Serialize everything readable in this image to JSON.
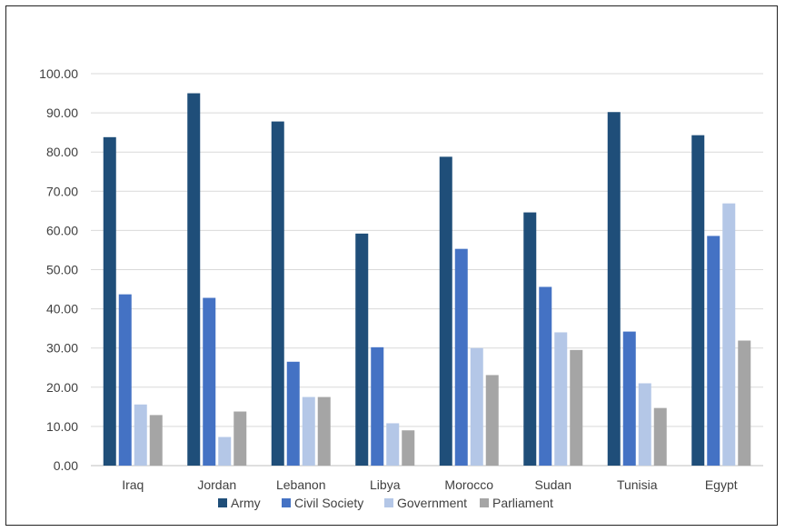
{
  "chart_data": {
    "type": "bar",
    "title": "",
    "xlabel": "",
    "ylabel": "",
    "ylim": [
      0,
      100
    ],
    "yticks": [
      "0.00",
      "10.00",
      "20.00",
      "30.00",
      "40.00",
      "50.00",
      "60.00",
      "70.00",
      "80.00",
      "90.00",
      "100.00"
    ],
    "categories": [
      "Iraq",
      "Jordan",
      "Lebanon",
      "Libya",
      "Morocco",
      "Sudan",
      "Tunisia",
      "Egypt"
    ],
    "series": [
      {
        "name": "Army",
        "color": "#1f4e79",
        "values": [
          83.8,
          95.0,
          87.8,
          59.2,
          78.8,
          64.6,
          90.2,
          84.3
        ]
      },
      {
        "name": "Civil Society",
        "color": "#4472c4",
        "values": [
          43.7,
          42.8,
          26.5,
          30.2,
          55.3,
          45.6,
          34.2,
          58.6
        ]
      },
      {
        "name": "Government",
        "color": "#b4c7e7",
        "values": [
          15.6,
          7.3,
          17.5,
          10.8,
          30.0,
          34.0,
          21.0,
          66.9
        ]
      },
      {
        "name": "Parliament",
        "color": "#a5a5a5",
        "values": [
          12.9,
          13.8,
          17.5,
          9.0,
          23.1,
          29.5,
          14.7,
          31.9
        ]
      }
    ],
    "legend_position": "bottom",
    "grid": true
  }
}
